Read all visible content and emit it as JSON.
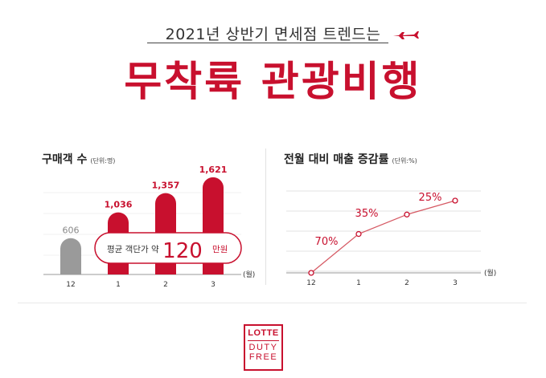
{
  "header": {
    "subtitle": "2021년 상반기 면세점 트렌드는",
    "headline": "무착륙 관광비행"
  },
  "colors": {
    "accent": "#c8102e",
    "gray_bar": "#9a9a9a",
    "grid": "#e3e3e3"
  },
  "icons": {
    "plane": "airplane-icon"
  },
  "logo": {
    "line1": "LOTTE",
    "line2": "DUTY",
    "line3": "FREE"
  },
  "chart_data": [
    {
      "type": "bar",
      "title": "구매객 수",
      "unit": "(단위:명)",
      "categories": [
        "12",
        "1",
        "2",
        "3"
      ],
      "values": [
        606,
        1036,
        1357,
        1621
      ],
      "value_labels": [
        "606",
        "1,036",
        "1,357",
        "1,621"
      ],
      "x_unit": "(월)",
      "ylim": [
        0,
        1700
      ],
      "callout": {
        "prefix": "평균 객단가  약",
        "value": "120",
        "suffix": "만원"
      }
    },
    {
      "type": "line",
      "title": "전월 대비 매출 증감률",
      "unit": "(단위:%)",
      "categories": [
        "12",
        "1",
        "2",
        "3"
      ],
      "x_unit": "(월)",
      "cumulative_level": [
        0,
        70,
        105,
        130
      ],
      "annotations": [
        "70%",
        "35%",
        "25%"
      ],
      "grid": true
    }
  ]
}
